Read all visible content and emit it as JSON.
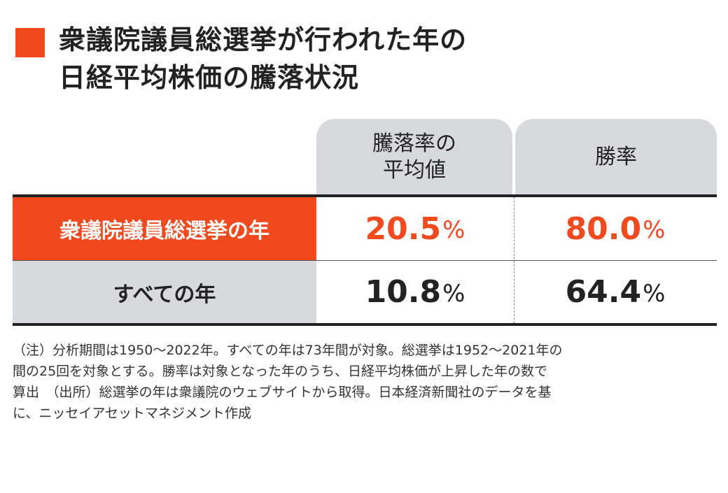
{
  "title": {
    "line1": "衆議院議員総選挙が行われた年の",
    "line2": "日経平均株価の騰落状況"
  },
  "table": {
    "columns": [
      {
        "line1": "騰落率の",
        "line2": "平均値"
      },
      {
        "line1": "勝率",
        "line2": ""
      }
    ],
    "rows": [
      {
        "label": "衆議院議員総選挙の年",
        "value1": "20.5",
        "value2": "80.0",
        "unit": "%"
      },
      {
        "label": "すべての年",
        "value1": "10.8",
        "value2": "64.4",
        "unit": "%"
      }
    ]
  },
  "note": {
    "line1": "（注）分析期間は1950〜2022年。すべての年は73年間が対象。総選挙は1952〜2021年の",
    "line2": "間の25回を対象とする。勝率は対象となった年のうち、日経平均株価が上昇した年の数で",
    "line3": "算出　（出所）総選挙の年は衆議院のウェブサイトから取得。日本経済新聞社のデータを基",
    "line4": "に、ニッセイアセットマネジメント作成"
  },
  "colors": {
    "accent": "#f04a1e",
    "header_bg": "#d7d9dd",
    "text": "#222222"
  }
}
